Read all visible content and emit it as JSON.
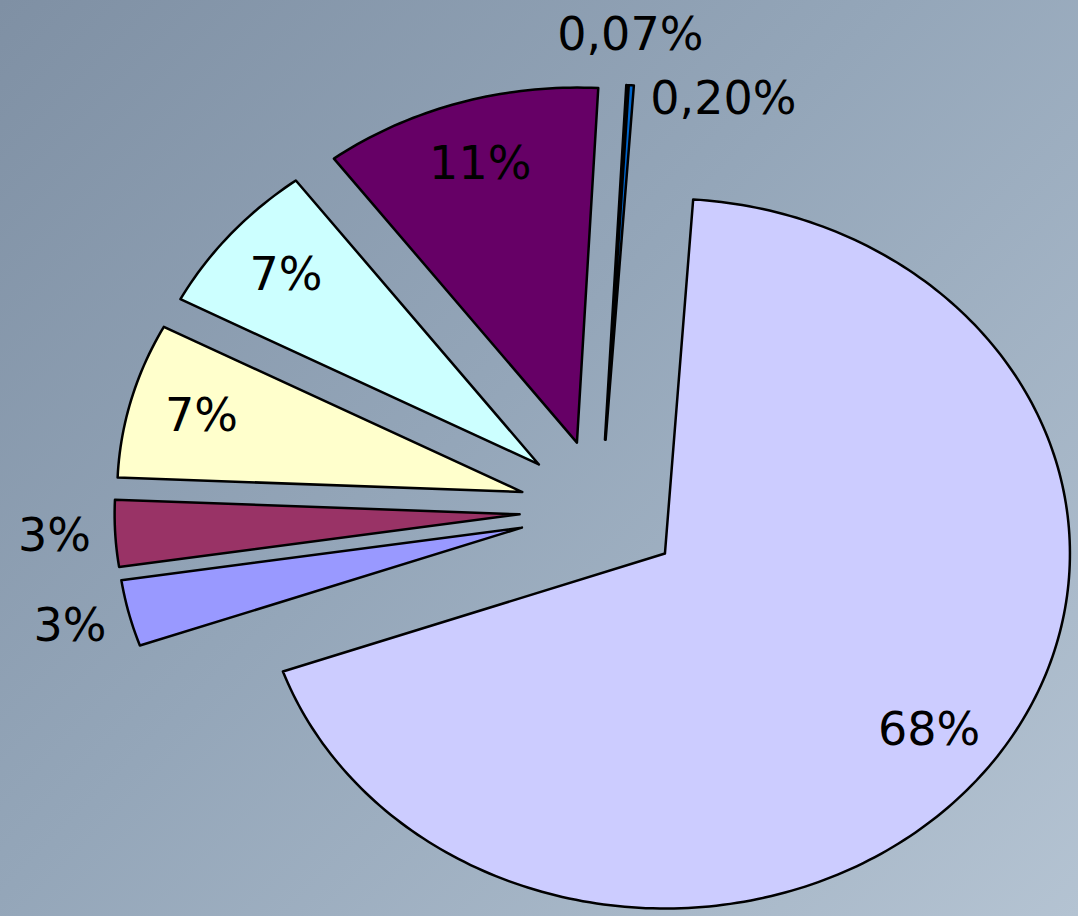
{
  "chart_data": {
    "type": "pie",
    "values": [
      3,
      3,
      7,
      7,
      11,
      0.07,
      0.2,
      68
    ],
    "value_labels": [
      "3%",
      "3%",
      "7%",
      "7%",
      "11%",
      "0,07%",
      "0,20%",
      "68%"
    ],
    "colors": [
      "#9999ff",
      "#993366",
      "#ffffcc",
      "#ccffff",
      "#660066",
      "#ff8080",
      "#0066cc",
      "#ccccff"
    ],
    "data_labels": true
  }
}
